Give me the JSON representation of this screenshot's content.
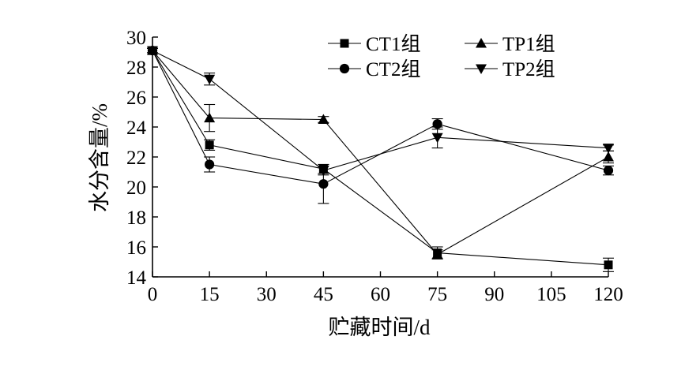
{
  "chart_data": {
    "type": "line",
    "xlabel": "贮藏时间/d",
    "ylabel": "水分含量/%",
    "x_ticks": [
      0,
      15,
      30,
      45,
      60,
      75,
      90,
      105,
      120
    ],
    "y_ticks": [
      14,
      16,
      18,
      20,
      22,
      24,
      26,
      28,
      30
    ],
    "xlim": [
      0,
      120
    ],
    "ylim": [
      14,
      30
    ],
    "x": [
      0,
      15,
      45,
      75,
      120
    ],
    "legend_position": "top-right",
    "grid": false,
    "series": [
      {
        "name": "CT1组",
        "marker": "square",
        "values": [
          29.1,
          22.8,
          21.2,
          15.6,
          14.8
        ],
        "errors": [
          0.15,
          0.35,
          0.3,
          0.4,
          0.45
        ]
      },
      {
        "name": "TP1组",
        "marker": "triangle-up",
        "values": [
          29.1,
          24.6,
          24.5,
          15.5,
          22.0
        ],
        "errors": [
          0.15,
          0.9,
          0.2,
          0.3,
          0.4
        ]
      },
      {
        "name": "CT2组",
        "marker": "circle",
        "values": [
          29.1,
          21.5,
          20.2,
          24.2,
          21.1
        ],
        "errors": [
          0.15,
          0.5,
          1.3,
          0.35,
          0.3
        ]
      },
      {
        "name": "TP2组",
        "marker": "triangle-down",
        "values": [
          29.1,
          27.2,
          21.1,
          23.3,
          22.6
        ],
        "errors": [
          0.15,
          0.4,
          0.3,
          0.7,
          0.2
        ]
      }
    ]
  }
}
